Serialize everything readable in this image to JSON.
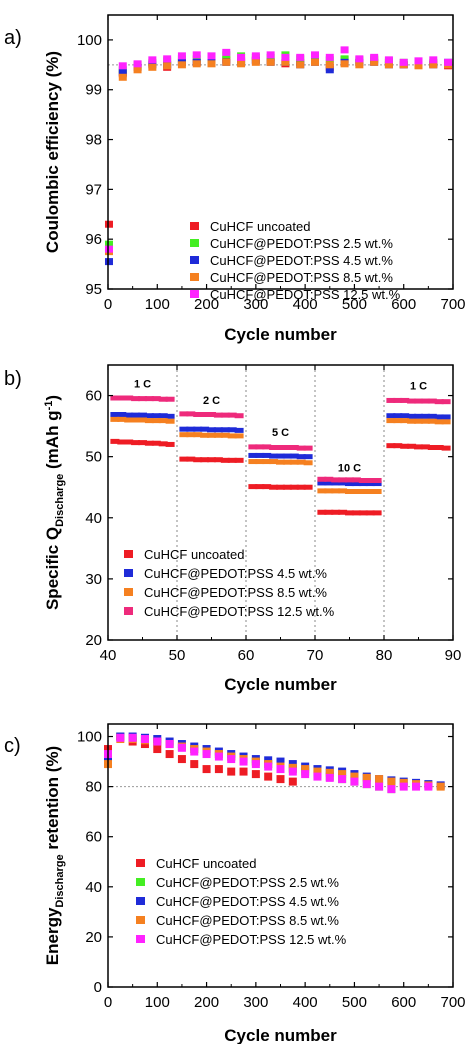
{
  "chart_data": [
    {
      "panel": "a)",
      "type": "scatter",
      "xlabel": "Cycle number",
      "ylabel": "Coulombic efficiency (%)",
      "xlim": [
        0,
        700
      ],
      "ylim": [
        95,
        100.5
      ],
      "xticks": [
        "0",
        "100",
        "200",
        "300",
        "400",
        "500",
        "600",
        "700"
      ],
      "yticks": [
        "95",
        "96",
        "97",
        "98",
        "99",
        "100"
      ],
      "reference_line": 99.5,
      "legend_position": "bottom-right",
      "series": [
        {
          "name": "CuHCF uncoated",
          "color": "#ee1c24",
          "x": [
            2,
            30,
            60,
            90,
            120,
            150,
            180,
            210,
            240,
            270,
            300,
            330,
            360,
            390,
            420,
            450,
            480,
            510,
            540,
            570,
            600,
            630,
            660,
            690
          ],
          "y": [
            96.3,
            99.32,
            99.45,
            99.52,
            99.45,
            99.55,
            99.55,
            99.58,
            99.6,
            99.58,
            99.6,
            99.57,
            99.52,
            99.55,
            99.6,
            99.45,
            99.6,
            99.55,
            99.6,
            99.55,
            99.5,
            99.5,
            99.52,
            99.48
          ]
        },
        {
          "name": "CuHCF@PEDOT:PSS 2.5 wt.%",
          "color": "#44ee22",
          "x": [
            2,
            30,
            60,
            90,
            120,
            150,
            180,
            210,
            240,
            270,
            300,
            330,
            360,
            390,
            420,
            450,
            480,
            510,
            540,
            570,
            600,
            630,
            660,
            690
          ],
          "y": [
            95.9,
            99.4,
            99.5,
            99.55,
            99.58,
            99.62,
            99.62,
            99.65,
            99.7,
            99.68,
            99.65,
            99.65,
            99.7,
            99.62,
            99.65,
            99.6,
            99.62,
            99.6,
            99.62,
            99.58,
            99.55,
            99.55,
            99.55,
            99.52
          ]
        },
        {
          "name": "CuHCF@PEDOT:PSS 4.5 wt.%",
          "color": "#1f2bd8",
          "x": [
            2,
            30,
            60,
            90,
            120,
            150,
            180,
            210,
            240,
            270,
            300,
            330,
            360,
            390,
            420,
            450,
            480,
            510,
            540,
            570,
            600,
            630,
            660,
            690
          ],
          "y": [
            95.55,
            99.35,
            99.45,
            99.5,
            99.5,
            99.55,
            99.55,
            99.55,
            99.55,
            99.55,
            99.58,
            99.55,
            99.55,
            99.5,
            99.55,
            99.4,
            99.55,
            99.55,
            99.55,
            99.5,
            99.5,
            99.5,
            99.5,
            99.55
          ]
        },
        {
          "name": "CuHCF@PEDOT:PSS 8.5 wt.%",
          "color": "#f58020",
          "x": [
            2,
            30,
            60,
            90,
            120,
            150,
            180,
            210,
            240,
            270,
            300,
            330,
            360,
            390,
            420,
            450,
            480,
            510,
            540,
            570,
            600,
            630,
            660,
            690
          ],
          "y": [
            95.75,
            99.25,
            99.4,
            99.45,
            99.48,
            99.5,
            99.52,
            99.52,
            99.55,
            99.52,
            99.55,
            99.55,
            99.55,
            99.5,
            99.55,
            99.5,
            99.52,
            99.5,
            99.55,
            99.5,
            99.5,
            99.48,
            99.5,
            99.5
          ]
        },
        {
          "name": "CuHCF@PEDOT:PSS 12.5 wt.%",
          "color": "#ff22ff",
          "x": [
            2,
            30,
            60,
            90,
            120,
            150,
            180,
            210,
            240,
            270,
            300,
            330,
            360,
            390,
            420,
            450,
            480,
            510,
            540,
            570,
            600,
            630,
            660,
            690
          ],
          "y": [
            95.8,
            99.48,
            99.52,
            99.6,
            99.62,
            99.68,
            99.7,
            99.68,
            99.75,
            99.65,
            99.68,
            99.7,
            99.65,
            99.65,
            99.7,
            99.65,
            99.8,
            99.62,
            99.65,
            99.6,
            99.55,
            99.58,
            99.6,
            99.55
          ]
        }
      ]
    },
    {
      "panel": "b)",
      "type": "scatter",
      "xlabel": "Cycle number",
      "ylabel": "Specific Q",
      "ylabel_sub": "Discharge",
      "ylabel_unit": " (mAh g",
      "ylabel_sup": "-1",
      "ylabel_end": ")",
      "xlim": [
        40,
        90
      ],
      "ylim": [
        20,
        65
      ],
      "xticks": [
        "40",
        "50",
        "60",
        "70",
        "80",
        "90"
      ],
      "yticks": [
        "20",
        "30",
        "40",
        "50",
        "60"
      ],
      "rate_dividers": [
        50,
        60,
        70,
        80
      ],
      "rate_labels": [
        {
          "text": "1 C",
          "x": 45,
          "y": 61.3
        },
        {
          "text": "2 C",
          "x": 55,
          "y": 58.6
        },
        {
          "text": "5 C",
          "x": 65,
          "y": 53.4
        },
        {
          "text": "10 C",
          "x": 75,
          "y": 47.6
        },
        {
          "text": "1 C",
          "x": 85,
          "y": 61.0
        }
      ],
      "legend_position": "bottom-left",
      "series": [
        {
          "name": "CuHCF uncoated",
          "color": "#ee1c24",
          "x": [
            41,
            42,
            43,
            44,
            45,
            46,
            47,
            48,
            49,
            51,
            52,
            53,
            54,
            55,
            56,
            57,
            58,
            59,
            61,
            62,
            63,
            64,
            65,
            66,
            67,
            68,
            69,
            71,
            72,
            73,
            74,
            75,
            76,
            77,
            78,
            79,
            81,
            82,
            83,
            84,
            85,
            86,
            87,
            88,
            89
          ],
          "y": [
            52.5,
            52.4,
            52.4,
            52.3,
            52.3,
            52.2,
            52.2,
            52.1,
            52.0,
            49.6,
            49.6,
            49.5,
            49.5,
            49.5,
            49.5,
            49.4,
            49.4,
            49.4,
            45.1,
            45.1,
            45.1,
            45.0,
            45.0,
            45.0,
            45.0,
            45.0,
            45.0,
            40.9,
            40.9,
            40.9,
            40.9,
            40.8,
            40.8,
            40.8,
            40.8,
            40.8,
            51.8,
            51.8,
            51.7,
            51.7,
            51.6,
            51.6,
            51.5,
            51.5,
            51.4
          ]
        },
        {
          "name": "CuHCF@PEDOT:PSS 4.5 wt.%",
          "color": "#1f2bd8",
          "x": [
            41,
            42,
            43,
            44,
            45,
            46,
            47,
            48,
            49,
            51,
            52,
            53,
            54,
            55,
            56,
            57,
            58,
            59,
            61,
            62,
            63,
            64,
            65,
            66,
            67,
            68,
            69,
            71,
            72,
            73,
            74,
            75,
            76,
            77,
            78,
            79,
            81,
            82,
            83,
            84,
            85,
            86,
            87,
            88,
            89
          ],
          "y": [
            56.9,
            56.9,
            56.8,
            56.8,
            56.8,
            56.7,
            56.7,
            56.7,
            56.6,
            54.5,
            54.5,
            54.5,
            54.5,
            54.4,
            54.4,
            54.4,
            54.4,
            54.3,
            50.2,
            50.2,
            50.2,
            50.1,
            50.1,
            50.1,
            50.1,
            50.0,
            50.0,
            45.7,
            45.7,
            45.7,
            45.7,
            45.6,
            45.6,
            45.6,
            45.6,
            45.6,
            56.7,
            56.7,
            56.7,
            56.6,
            56.6,
            56.6,
            56.6,
            56.5,
            56.5
          ]
        },
        {
          "name": "CuHCF@PEDOT:PSS 8.5 wt.%",
          "color": "#f58020",
          "x": [
            41,
            42,
            43,
            44,
            45,
            46,
            47,
            48,
            49,
            51,
            52,
            53,
            54,
            55,
            56,
            57,
            58,
            59,
            61,
            62,
            63,
            64,
            65,
            66,
            67,
            68,
            69,
            71,
            72,
            73,
            74,
            75,
            76,
            77,
            78,
            79,
            81,
            82,
            83,
            84,
            85,
            86,
            87,
            88,
            89
          ],
          "y": [
            56.1,
            56.1,
            56.0,
            56.0,
            56.0,
            55.9,
            55.9,
            55.9,
            55.8,
            53.6,
            53.6,
            53.6,
            53.5,
            53.5,
            53.5,
            53.5,
            53.4,
            53.4,
            49.2,
            49.2,
            49.2,
            49.2,
            49.1,
            49.1,
            49.1,
            49.1,
            49.0,
            44.4,
            44.4,
            44.4,
            44.4,
            44.3,
            44.3,
            44.3,
            44.3,
            44.3,
            55.9,
            55.9,
            55.9,
            55.8,
            55.8,
            55.8,
            55.8,
            55.7,
            55.7
          ]
        },
        {
          "name": "CuHCF@PEDOT:PSS  12.5 wt.%",
          "color": "#ee2a7b",
          "x": [
            41,
            42,
            43,
            44,
            45,
            46,
            47,
            48,
            49,
            51,
            52,
            53,
            54,
            55,
            56,
            57,
            58,
            59,
            61,
            62,
            63,
            64,
            65,
            66,
            67,
            68,
            69,
            71,
            72,
            73,
            74,
            75,
            76,
            77,
            78,
            79,
            81,
            82,
            83,
            84,
            85,
            86,
            87,
            88,
            89
          ],
          "y": [
            59.6,
            59.6,
            59.6,
            59.5,
            59.5,
            59.5,
            59.5,
            59.4,
            59.4,
            57.0,
            57.0,
            56.9,
            56.9,
            56.9,
            56.8,
            56.8,
            56.8,
            56.7,
            51.6,
            51.6,
            51.6,
            51.5,
            51.5,
            51.5,
            51.5,
            51.4,
            51.4,
            46.3,
            46.3,
            46.2,
            46.2,
            46.2,
            46.2,
            46.1,
            46.1,
            46.1,
            59.2,
            59.2,
            59.2,
            59.1,
            59.1,
            59.1,
            59.1,
            59.0,
            59.0
          ]
        }
      ]
    },
    {
      "panel": "c)",
      "type": "scatter",
      "xlabel": "Cycle number",
      "ylabel": "Energy",
      "ylabel_sub": "Discharge",
      "ylabel_end": " retention (%)",
      "xlim": [
        0,
        700
      ],
      "ylim": [
        0,
        105
      ],
      "xticks": [
        "0",
        "100",
        "200",
        "300",
        "400",
        "500",
        "600",
        "700"
      ],
      "yticks": [
        "0",
        "20",
        "40",
        "60",
        "80",
        "100"
      ],
      "reference_line": 80,
      "legend_position": "bottom-left",
      "series": [
        {
          "name": "CuHCF uncoated",
          "color": "#ee1c24",
          "x": [
            0,
            25,
            50,
            75,
            100,
            125,
            150,
            175,
            200,
            225,
            250,
            275,
            300,
            325,
            350,
            375
          ],
          "y": [
            95,
            100,
            98,
            97,
            95,
            93,
            91,
            89,
            87,
            87,
            86,
            86,
            85,
            84,
            83,
            82
          ]
        },
        {
          "name": "CuHCF@PEDOT:PSS 2.5 wt.%",
          "color": "#44ee22",
          "x": [
            0,
            25,
            50,
            75,
            100,
            125,
            150,
            175,
            200,
            225,
            250,
            275,
            300,
            325,
            350,
            375,
            400,
            425,
            450,
            475,
            500,
            525,
            550,
            575
          ],
          "y": [
            92,
            100,
            99.5,
            99,
            98,
            97,
            96,
            95,
            94,
            93,
            92,
            91,
            90,
            89,
            88,
            87,
            86,
            85,
            84,
            83,
            82,
            81,
            80,
            79
          ]
        },
        {
          "name": "CuHCF@PEDOT:PSS 4.5 wt.%",
          "color": "#1f2bd8",
          "x": [
            0,
            25,
            50,
            75,
            100,
            125,
            150,
            175,
            200,
            225,
            250,
            275,
            300,
            325,
            350,
            375,
            400,
            425,
            450,
            475,
            500,
            525,
            550,
            575,
            600,
            625,
            650,
            675
          ],
          "y": [
            91,
            100,
            100,
            99.5,
            99,
            98,
            97,
            96,
            95,
            94,
            93,
            92,
            91,
            90.5,
            90,
            89,
            88,
            87,
            86.5,
            86,
            85,
            84,
            83,
            82.5,
            82,
            81.5,
            81,
            80.5
          ]
        },
        {
          "name": "CuHCF@PEDOT:PSS 8.5 wt.%",
          "color": "#f58020",
          "x": [
            0,
            25,
            50,
            75,
            100,
            125,
            150,
            175,
            200,
            225,
            250,
            275,
            300,
            325,
            350,
            375,
            400,
            425,
            450,
            475,
            500,
            525,
            550,
            575,
            600,
            625,
            650,
            675
          ],
          "y": [
            89,
            99,
            99,
            98.5,
            98,
            97,
            96,
            95,
            94,
            93,
            92,
            91,
            90,
            89,
            88,
            87.5,
            87,
            86,
            85.5,
            85,
            84,
            83.5,
            83,
            82,
            81.5,
            81,
            80.5,
            80
          ]
        },
        {
          "name": "CuHCF@PEDOT:PSS 12.5 wt.%",
          "color": "#ff22ff",
          "x": [
            0,
            25,
            50,
            75,
            100,
            125,
            150,
            175,
            200,
            225,
            250,
            275,
            300,
            325,
            350,
            375,
            400,
            425,
            450,
            475,
            500,
            525,
            550,
            575,
            600,
            625,
            650
          ],
          "y": [
            93,
            99.5,
            99.5,
            99,
            98,
            97,
            95.5,
            94,
            93,
            92,
            91,
            90,
            89,
            88,
            87,
            86,
            85,
            84,
            83.5,
            83,
            82,
            81,
            80,
            79,
            80,
            80,
            80
          ]
        }
      ]
    }
  ]
}
